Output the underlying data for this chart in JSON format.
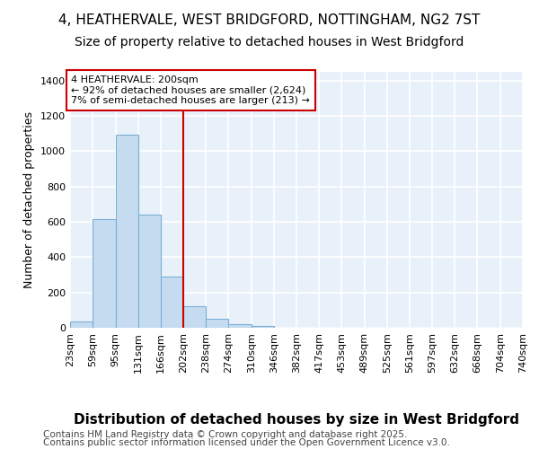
{
  "title_line1": "4, HEATHERVALE, WEST BRIDGFORD, NOTTINGHAM, NG2 7ST",
  "title_line2": "Size of property relative to detached houses in West Bridgford",
  "xlabel": "Distribution of detached houses by size in West Bridgford",
  "ylabel": "Number of detached properties",
  "footer_line1": "Contains HM Land Registry data © Crown copyright and database right 2025.",
  "footer_line2": "Contains public sector information licensed under the Open Government Licence v3.0.",
  "bins": [
    23,
    59,
    95,
    131,
    166,
    202,
    238,
    274,
    310,
    346,
    382,
    417,
    453,
    489,
    525,
    561,
    597,
    632,
    668,
    704,
    740
  ],
  "bin_labels": [
    "23sqm",
    "59sqm",
    "95sqm",
    "131sqm",
    "166sqm",
    "202sqm",
    "238sqm",
    "274sqm",
    "310sqm",
    "346sqm",
    "382sqm",
    "417sqm",
    "453sqm",
    "489sqm",
    "525sqm",
    "561sqm",
    "597sqm",
    "632sqm",
    "668sqm",
    "704sqm",
    "740sqm"
  ],
  "values": [
    35,
    615,
    1095,
    640,
    290,
    120,
    50,
    20,
    12,
    0,
    0,
    0,
    0,
    0,
    0,
    0,
    0,
    0,
    0,
    0
  ],
  "property_size_label": "200sqm",
  "vline_x": 202,
  "vline_color": "#CC0000",
  "bar_facecolor": "#C5DCF0",
  "bar_edgecolor": "#7BAFD4",
  "background_color": "#E8F1FA",
  "annotation_line1": "4 HEATHERVALE: 200sqm",
  "annotation_line2": "← 92% of detached houses are smaller (2,624)",
  "annotation_line3": "7% of semi-detached houses are larger (213) →",
  "annotation_box_color": "#CC0000",
  "ylim": [
    0,
    1450
  ],
  "yticks": [
    0,
    200,
    400,
    600,
    800,
    1000,
    1200,
    1400
  ],
  "grid_color": "#FFFFFF",
  "title_fontsize": 11,
  "subtitle_fontsize": 10,
  "xlabel_fontsize": 11,
  "ylabel_fontsize": 9,
  "tick_fontsize": 8,
  "annotation_fontsize": 8,
  "footer_fontsize": 7.5
}
